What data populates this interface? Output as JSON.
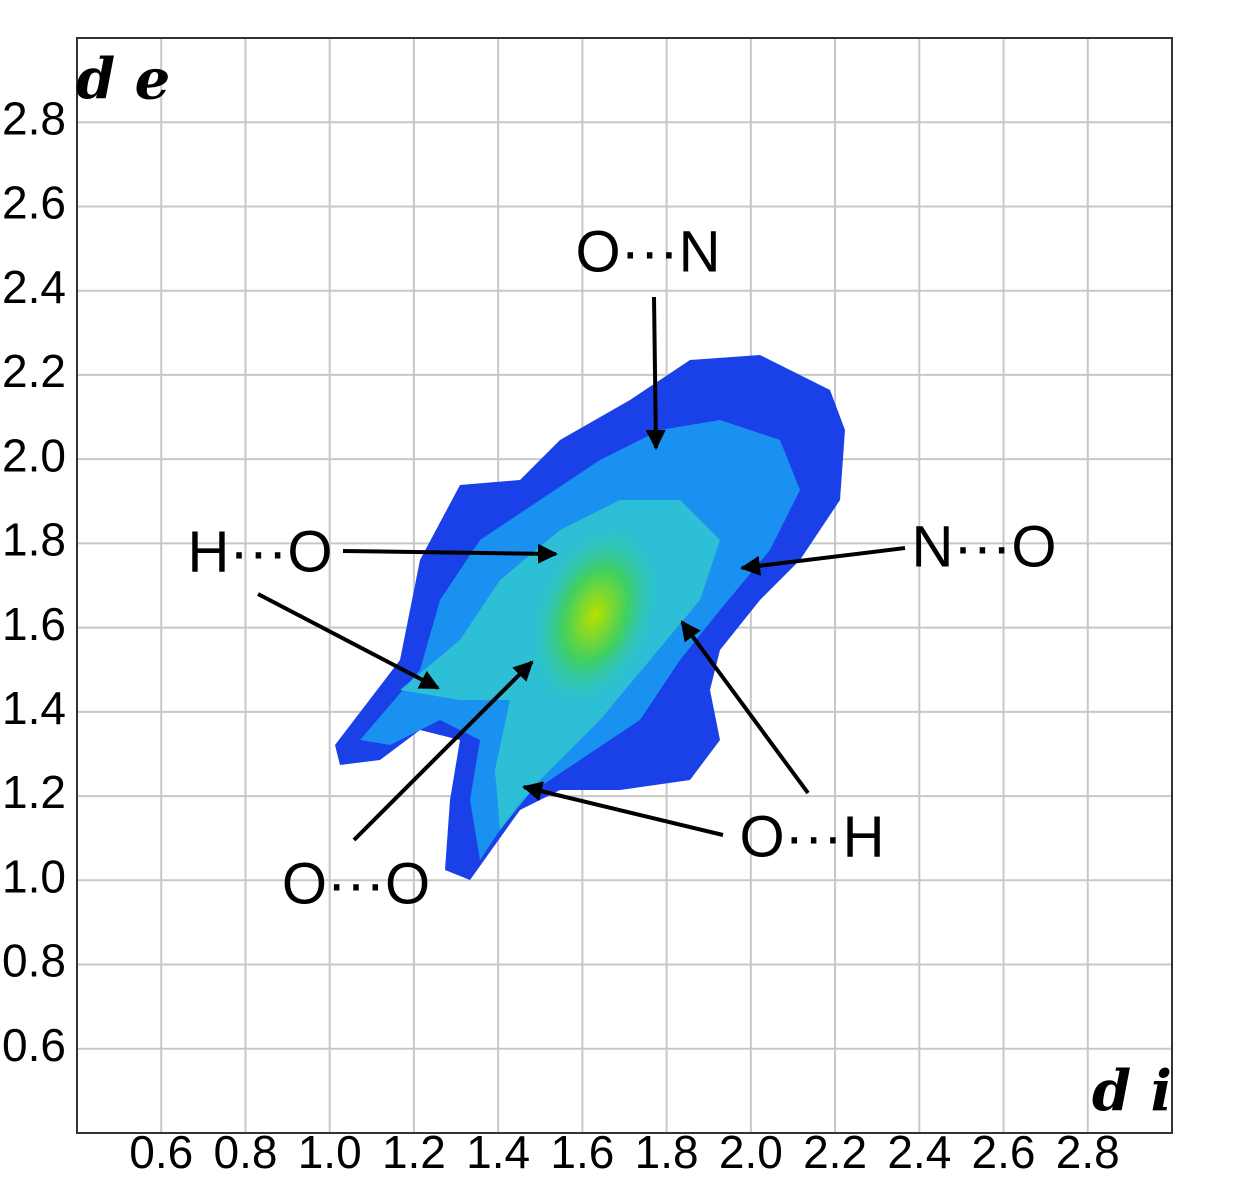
{
  "chart_data": {
    "type": "fingerprint",
    "x_label": "d i",
    "y_label": "d e",
    "xlim": [
      0.4,
      3.0
    ],
    "ylim": [
      0.4,
      3.0
    ],
    "xticks": [
      0.6,
      0.8,
      {
        "value": 1,
        "label": "1.0"
      },
      1.2,
      1.4,
      1.6,
      1.8,
      {
        "value": 2,
        "label": "2.0"
      },
      2.2,
      2.4,
      2.6,
      2.8
    ],
    "yticks": [
      0.6,
      0.8,
      {
        "value": 1,
        "label": "1.0"
      },
      1.2,
      1.4,
      1.6,
      1.8,
      {
        "value": 2,
        "label": "2.0"
      },
      2.2,
      2.4,
      2.6,
      2.8
    ],
    "grid": true,
    "annotations": [
      "O···N",
      "H···O",
      "N···O",
      "O···H",
      "O···O"
    ]
  }
}
